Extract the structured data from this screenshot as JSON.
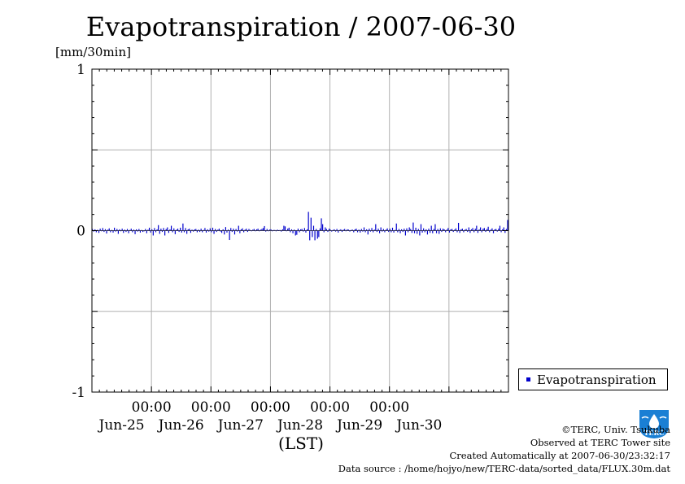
{
  "title": "Evapotranspiration / 2007-06-30",
  "unit_label": "[mm/30min]",
  "chart_data": {
    "type": "bar",
    "title": "Evapotranspiration / 2007-06-30",
    "ylabel": "[mm/30min]",
    "xlabel": "(LST)",
    "ylim": [
      -1,
      1
    ],
    "yticks": [
      "1",
      "0",
      "-1"
    ],
    "xticks": [
      {
        "time": "00:00",
        "date": "Jun-25"
      },
      {
        "time": "00:00",
        "date": "Jun-26"
      },
      {
        "time": "00:00",
        "date": "Jun-27"
      },
      {
        "time": "00:00",
        "date": "Jun-28"
      },
      {
        "time": "00:00",
        "date": "Jun-29"
      },
      {
        "time": "00:00",
        "date": "Jun-30"
      }
    ],
    "x_range": [
      "2007-06-24 00:00",
      "2007-07-01 00:00"
    ],
    "grid": true,
    "legend_position": "bottom-right-outside",
    "series": [
      {
        "name": "Evapotranspiration",
        "color": "#0000cc",
        "interval_minutes": 30,
        "values": [
          0.01,
          -0.006,
          0.008,
          -0.01,
          0.005,
          -0.014,
          0.012,
          -0.004,
          0.016,
          -0.008,
          0.009,
          -0.018,
          0.006,
          0.014,
          -0.01,
          0.004,
          -0.012,
          0.018,
          -0.006,
          0.01,
          -0.02,
          0.008,
          -0.004,
          0.012,
          -0.014,
          0.006,
          -0.008,
          0.01,
          -0.016,
          0.004,
          0.012,
          -0.01,
          0.006,
          -0.022,
          0.008,
          -0.006,
          0.01,
          -0.012,
          0.004,
          -0.008,
          -0.004,
          0.01,
          -0.016,
          0.006,
          0.018,
          -0.012,
          0.008,
          -0.03,
          0.016,
          -0.01,
          0.008,
          0.034,
          -0.02,
          0.012,
          -0.008,
          0.016,
          -0.03,
          0.01,
          0.02,
          -0.014,
          0.008,
          0.03,
          -0.01,
          0.014,
          -0.022,
          0.006,
          0.012,
          -0.008,
          0.018,
          -0.012,
          0.044,
          -0.01,
          0.016,
          -0.02,
          0.008,
          0.012,
          -0.014,
          0.006,
          -0.006,
          0.008,
          0.01,
          -0.01,
          0.006,
          -0.008,
          0.012,
          -0.01,
          0.004,
          0.016,
          -0.012,
          0.008,
          -0.006,
          0.014,
          -0.01,
          0.018,
          -0.02,
          0.01,
          -0.008,
          0.006,
          0.012,
          -0.006,
          -0.014,
          0.008,
          -0.024,
          0.022,
          -0.012,
          0.006,
          -0.058,
          0.016,
          -0.008,
          0.012,
          -0.024,
          0.01,
          -0.006,
          0.03,
          -0.016,
          0.008,
          0.014,
          -0.01,
          0.006,
          0.012,
          -0.008,
          0.01,
          0.004,
          -0.004,
          0.006,
          0.01,
          -0.004,
          0.008,
          0.012,
          -0.002,
          0.006,
          0.01,
          0.016,
          0.028,
          -0.006,
          0.01,
          -0.004,
          0.006,
          0.008,
          -0.002,
          0.004,
          0.004,
          -0.004,
          0.006,
          0.002,
          0.004,
          -0.006,
          0.008,
          0.03,
          0.026,
          -0.004,
          0.012,
          0.018,
          -0.01,
          0.008,
          -0.016,
          0.006,
          -0.03,
          -0.026,
          0.012,
          -0.01,
          0.008,
          0.01,
          -0.006,
          0.016,
          -0.012,
          0.008,
          0.116,
          -0.06,
          0.08,
          -0.04,
          0.03,
          -0.06,
          0.01,
          -0.05,
          -0.04,
          0.014,
          0.076,
          0.04,
          -0.01,
          0.02,
          0.01,
          -0.008,
          0.012,
          0.006,
          -0.006,
          0.004,
          0.008,
          -0.006,
          0.01,
          -0.012,
          0.004,
          0.008,
          -0.008,
          0.006,
          0.01,
          -0.004,
          0.008,
          0.006,
          -0.006,
          0.004,
          0.006,
          -0.01,
          0.008,
          0.012,
          -0.01,
          0.006,
          -0.012,
          0.01,
          -0.006,
          0.02,
          -0.01,
          0.008,
          -0.024,
          0.012,
          -0.006,
          0.016,
          -0.01,
          0.006,
          0.04,
          -0.008,
          0.012,
          -0.016,
          0.02,
          -0.006,
          0.01,
          -0.01,
          0.006,
          0.014,
          -0.008,
          0.012,
          -0.01,
          0.018,
          -0.012,
          0.004,
          0.044,
          -0.01,
          0.01,
          -0.016,
          0.008,
          -0.008,
          0.012,
          -0.03,
          0.014,
          -0.01,
          0.02,
          0.01,
          -0.014,
          0.05,
          -0.016,
          0.018,
          -0.02,
          0.01,
          -0.03,
          0.04,
          -0.012,
          0.014,
          -0.01,
          0.008,
          -0.024,
          0.012,
          -0.014,
          0.03,
          -0.016,
          0.01,
          0.04,
          -0.016,
          0.01,
          -0.02,
          0.014,
          -0.008,
          0.012,
          0.008,
          -0.01,
          0.006,
          0.016,
          -0.012,
          0.008,
          0.01,
          -0.008,
          0.006,
          0.014,
          -0.01,
          0.048,
          -0.014,
          0.008,
          0.012,
          -0.01,
          0.006,
          0.01,
          -0.008,
          0.02,
          -0.014,
          0.008,
          0.016,
          -0.01,
          0.012,
          0.03,
          -0.014,
          0.008,
          0.02,
          -0.01,
          0.012,
          0.016,
          -0.008,
          0.01,
          0.024,
          -0.01,
          0.006,
          0.014,
          -0.016,
          0.008,
          0.01,
          -0.006,
          0.012,
          0.03,
          -0.01,
          0.008,
          0.02,
          -0.014,
          0.01,
          0.066
        ]
      }
    ]
  },
  "xaxis_label": "(LST)",
  "legend": {
    "label": "Evapotranspiration",
    "color": "#0000cc"
  },
  "credits": {
    "copyright": "©TERC, Univ. Tsukuba",
    "observed": "Observed at TERC Tower site",
    "created": "Created Automatically at 2007-06-30/23:32:17",
    "source": "Data source : /home/hojyo/new/TERC-data/sorted_data/FLUX.30m.dat"
  },
  "logo": {
    "text": "TERC",
    "color": "#1a7fd4",
    "icon": "terc-logo-icon"
  }
}
